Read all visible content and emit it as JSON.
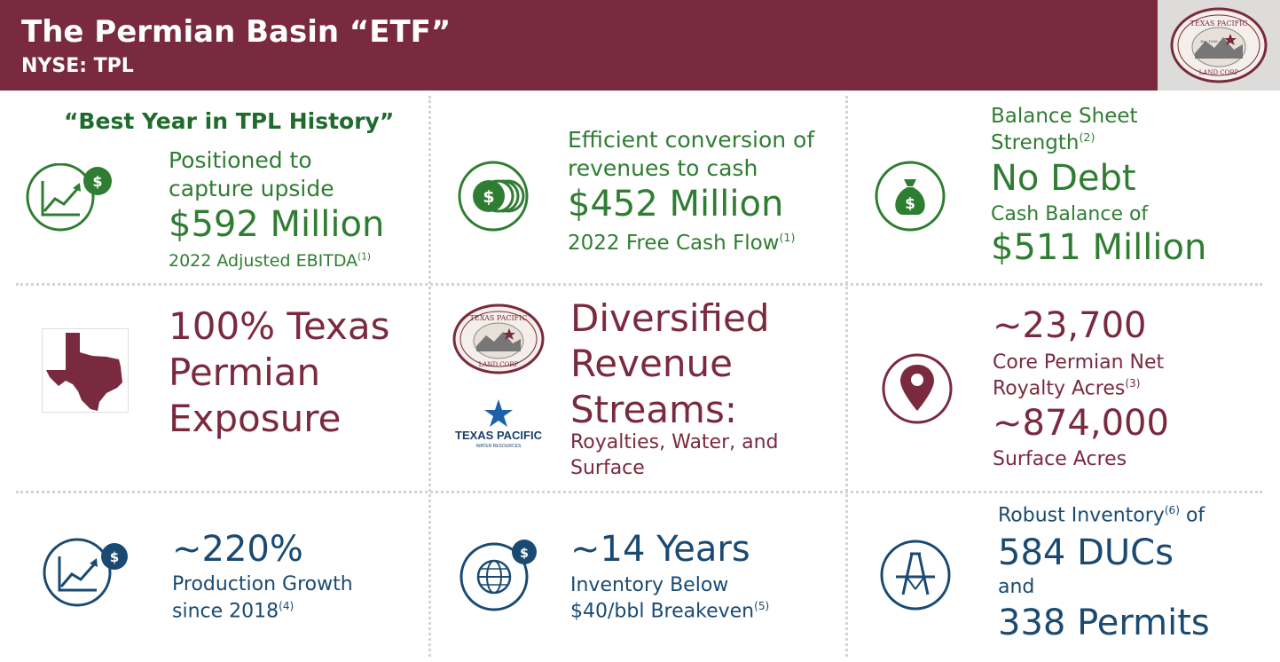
{
  "header": {
    "title": "The Permian Basin “ETF”",
    "subtitle": "NYSE: TPL",
    "logo_text_top": "TEXAS PACIFIC",
    "logo_text_bottom": "LAND CORP",
    "logo_est": "Est. 1888"
  },
  "colors": {
    "header_bg": "#7a2a3e",
    "green": "#2f7d32",
    "maroon": "#7a2a3e",
    "navy": "#1a4a72",
    "divider": "#d4d4d4"
  },
  "cells": {
    "ebitda": {
      "tagline": "“Best Year in TPL History”",
      "line1": "Positioned to",
      "line2": "capture upside",
      "value": "$592 Million",
      "caption": "2022 Adjusted EBITDA",
      "footnote": "(1)",
      "icon": "growth-chart-dollar-icon"
    },
    "fcf": {
      "line1": "Efficient conversion of",
      "line2": "revenues to cash",
      "value": "$452 Million",
      "caption": "2022 Free Cash Flow",
      "footnote": "(1)",
      "icon": "coin-stack-icon"
    },
    "balance": {
      "line1": "Balance Sheet",
      "line2": "Strength",
      "footnote": "(2)",
      "value1": "No Debt",
      "caption": "Cash Balance of",
      "value2": "$511 Million",
      "icon": "money-bag-icon"
    },
    "texas": {
      "line1": "100% Texas",
      "line2": "Permian",
      "line3": "Exposure",
      "icon": "texas-map-icon"
    },
    "revenue": {
      "line1": "Diversified",
      "line2": "Revenue",
      "line3": "Streams:",
      "line4": "Royalties, Water, and",
      "line5": "Surface",
      "logo_top_text": "TEXAS PACIFIC",
      "logo_top_bottom": "LAND CORP",
      "logo_water_name": "TEXAS PACIFIC",
      "logo_water_sub": "WATER RESOURCES"
    },
    "acres": {
      "value1": "~23,700",
      "line1": "Core Permian Net",
      "line2": "Royalty Acres",
      "footnote": "(3)",
      "value2": "~874,000",
      "caption": "Surface Acres",
      "icon": "location-pin-icon"
    },
    "production": {
      "value": "~220%",
      "line1": "Production Growth",
      "line2": "since 2018",
      "footnote": "(4)",
      "icon": "growth-chart-dollar-icon"
    },
    "inventory": {
      "value": "~14 Years",
      "line1": "Inventory Below",
      "line2": "$40/bbl Breakeven",
      "footnote": "(5)",
      "icon": "globe-dollar-icon"
    },
    "ducs": {
      "line1": "Robust Inventory",
      "footnote": "(6)",
      "line1b": " of",
      "value1": "584 DUCs",
      "and": "and",
      "value2": "338 Permits",
      "icon": "drilling-rig-icon"
    }
  }
}
